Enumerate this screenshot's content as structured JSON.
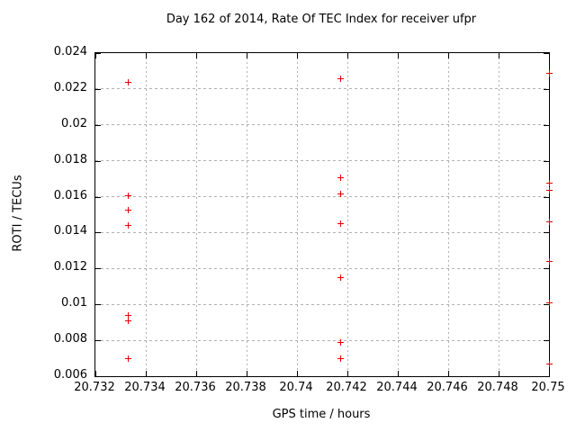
{
  "figure": {
    "title": "Day 162 of 2014, Rate Of TEC Index for receiver ufpr"
  },
  "colors": {
    "marker": "#e60000",
    "grid": "#b0b0b0",
    "axis": "#000000",
    "background": "#ffffff",
    "text": "#000000"
  },
  "chart_data": {
    "type": "scatter",
    "title": "Day 162 of 2014, Rate Of TEC Index for receiver ufpr",
    "xlabel": "GPS time / hours",
    "ylabel": "ROTI / TECUs",
    "xlim": [
      20.732,
      20.75
    ],
    "ylim": [
      0.006,
      0.024
    ],
    "x_ticks": [
      20.732,
      20.734,
      20.736,
      20.738,
      20.74,
      20.742,
      20.744,
      20.746,
      20.748,
      20.75
    ],
    "x_tick_labels": [
      "20.732",
      "20.734",
      "20.736",
      "20.738",
      "20.74",
      "20.742",
      "20.744",
      "20.746",
      "20.748",
      "20.75"
    ],
    "y_ticks": [
      0.006,
      0.008,
      0.01,
      0.012,
      0.014,
      0.016,
      0.018,
      0.02,
      0.022,
      0.024
    ],
    "y_tick_labels": [
      "0.006",
      "0.008",
      "0.01",
      "0.012",
      "0.014",
      "0.016",
      "0.018",
      "0.02",
      "0.022",
      "0.024"
    ],
    "grid": true,
    "legend_position": "none",
    "marker_style": "plus",
    "series": [
      {
        "name": "ROTI",
        "color": "#e60000",
        "points": [
          [
            20.7333,
            0.0224
          ],
          [
            20.7333,
            0.0161
          ],
          [
            20.7333,
            0.0153
          ],
          [
            20.7333,
            0.0144
          ],
          [
            20.7333,
            0.0094
          ],
          [
            20.7333,
            0.0091
          ],
          [
            20.7333,
            0.007
          ],
          [
            20.7417,
            0.0226
          ],
          [
            20.7417,
            0.0171
          ],
          [
            20.7417,
            0.0162
          ],
          [
            20.7417,
            0.0145
          ],
          [
            20.7417,
            0.0115
          ],
          [
            20.7417,
            0.0079
          ],
          [
            20.7417,
            0.007
          ],
          [
            20.75,
            0.0229
          ],
          [
            20.75,
            0.0168
          ],
          [
            20.75,
            0.0164
          ],
          [
            20.75,
            0.0146
          ],
          [
            20.75,
            0.0124
          ],
          [
            20.75,
            0.0101
          ],
          [
            20.75,
            0.0067
          ]
        ]
      }
    ]
  }
}
